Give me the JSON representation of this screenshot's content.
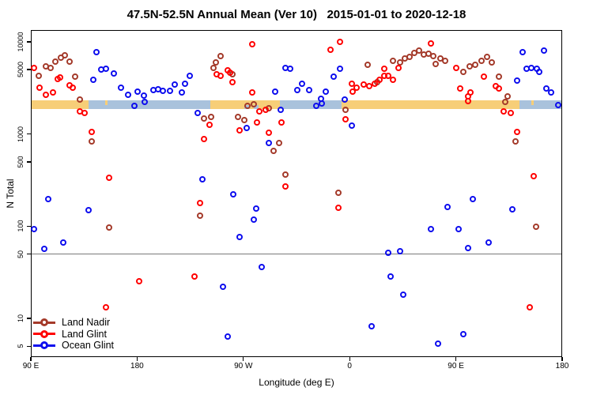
{
  "title": "47.5N-52.5N Annual Mean (Ver 10)   2015-01-01 to 2020-12-18",
  "chart_data": {
    "type": "scatter",
    "title": "47.5N-52.5N Annual Mean (Ver 10)   2015-01-01 to 2020-12-18",
    "xlabel": "Longitude (deg E)",
    "ylabel": "N Total",
    "x_axis": {
      "note": "longitude axis spans 450 deg eastward, t = degrees east of 90E",
      "range_deg": [
        0,
        450
      ],
      "ticks": [
        {
          "t": 0,
          "label": "90 E"
        },
        {
          "t": 90,
          "label": "180"
        },
        {
          "t": 180,
          "label": "90 W"
        },
        {
          "t": 270,
          "label": "0"
        },
        {
          "t": 360,
          "label": "90 E"
        },
        {
          "t": 450,
          "label": "180"
        }
      ]
    },
    "y_axis": {
      "scale": "log10",
      "ylim": [
        3.8,
        13400
      ],
      "ticks": [
        10000,
        5000,
        1000,
        500,
        100,
        50,
        10,
        5
      ]
    },
    "grid": "off",
    "legend_position": "bottom-left-inside",
    "reference_line_n": 50,
    "reference_line_color": "#7a7a7a",
    "surface_band": {
      "description": "land/ocean strip map along latitude band",
      "n_top": 2320,
      "n_bottom": 1870,
      "land_color": "#F7CE78",
      "ocean_color": "#A9C2DC",
      "segments": [
        {
          "from": 0,
          "to": 49,
          "type": "land"
        },
        {
          "from": 49,
          "to": 152,
          "type": "ocean"
        },
        {
          "from": 152,
          "to": 211,
          "type": "land"
        },
        {
          "from": 211,
          "to": 263,
          "type": "ocean"
        },
        {
          "from": 263,
          "to": 414,
          "type": "land"
        },
        {
          "from": 414,
          "to": 450,
          "type": "ocean"
        }
      ],
      "specks": [
        {
          "from": 63,
          "to": 65,
          "type": "land",
          "pos": "top"
        },
        {
          "from": 181,
          "to": 185,
          "type": "ocean",
          "pos": "bottom"
        },
        {
          "from": 189,
          "to": 193,
          "type": "ocean",
          "pos": "bottom"
        },
        {
          "from": 424,
          "to": 426,
          "type": "land",
          "pos": "top"
        }
      ]
    },
    "series": [
      {
        "name": "Land Nadir",
        "color": "#A43A2A",
        "points": [
          [
            7,
            4200
          ],
          [
            13,
            5320
          ],
          [
            17,
            5110
          ],
          [
            21,
            5990
          ],
          [
            26,
            6610
          ],
          [
            29,
            7010
          ],
          [
            33,
            5990
          ],
          [
            38,
            4110
          ],
          [
            42,
            2320
          ],
          [
            52,
            816
          ],
          [
            147,
            1470
          ],
          [
            153,
            1530
          ],
          [
            184,
            1980
          ],
          [
            189,
            2060
          ],
          [
            176,
            1530
          ],
          [
            181,
            1390
          ],
          [
            202,
            1870
          ],
          [
            211,
            785
          ],
          [
            206,
            644
          ],
          [
            216,
            356
          ],
          [
            161,
            6870
          ],
          [
            157,
            5870
          ],
          [
            155,
            5110
          ],
          [
            171,
            4370
          ],
          [
            286,
            5540
          ],
          [
            294,
            3580
          ],
          [
            307,
            6110
          ],
          [
            313,
            5870
          ],
          [
            317,
            6480
          ],
          [
            321,
            6740
          ],
          [
            325,
            7440
          ],
          [
            329,
            7890
          ],
          [
            333,
            7150
          ],
          [
            337,
            7290
          ],
          [
            341,
            6870
          ],
          [
            343,
            5650
          ],
          [
            347,
            6480
          ],
          [
            351,
            6110
          ],
          [
            367,
            4630
          ],
          [
            372,
            5320
          ],
          [
            377,
            5540
          ],
          [
            382,
            6110
          ],
          [
            387,
            6740
          ],
          [
            391,
            5870
          ],
          [
            397,
            4110
          ],
          [
            404,
            2510
          ],
          [
            267,
            1800
          ],
          [
            402,
            2190
          ],
          [
            411,
            816
          ],
          [
            67,
            96
          ],
          [
            144,
            128
          ],
          [
            261,
            227
          ],
          [
            428,
            98
          ]
        ]
      },
      {
        "name": "Land Glint",
        "color": "#FF0000",
        "points": [
          [
            3,
            5110
          ],
          [
            8,
            3120
          ],
          [
            13,
            2610
          ],
          [
            19,
            2770
          ],
          [
            23,
            3880
          ],
          [
            25,
            4030
          ],
          [
            33,
            3310
          ],
          [
            36,
            3120
          ],
          [
            42,
            1730
          ],
          [
            46,
            1690
          ],
          [
            52,
            1050
          ],
          [
            67,
            335
          ],
          [
            152,
            1250
          ],
          [
            147,
            870
          ],
          [
            194,
            1730
          ],
          [
            199,
            1800
          ],
          [
            192,
            1330
          ],
          [
            177,
            1090
          ],
          [
            213,
            1330
          ],
          [
            202,
            1030
          ],
          [
            216,
            265
          ],
          [
            158,
            4370
          ],
          [
            161,
            4200
          ],
          [
            167,
            4820
          ],
          [
            169,
            4540
          ],
          [
            171,
            3580
          ],
          [
            188,
            2770
          ],
          [
            188,
            9240
          ],
          [
            272,
            3450
          ],
          [
            273,
            2830
          ],
          [
            276,
            3120
          ],
          [
            282,
            3380
          ],
          [
            287,
            3250
          ],
          [
            292,
            3450
          ],
          [
            296,
            3800
          ],
          [
            300,
            4200
          ],
          [
            262,
            9800
          ],
          [
            254,
            8050
          ],
          [
            300,
            5010
          ],
          [
            303,
            4200
          ],
          [
            307,
            3800
          ],
          [
            312,
            5110
          ],
          [
            339,
            9430
          ],
          [
            361,
            5110
          ],
          [
            364,
            3060
          ],
          [
            371,
            2510
          ],
          [
            373,
            2770
          ],
          [
            384,
            4110
          ],
          [
            394,
            3250
          ],
          [
            397,
            3060
          ],
          [
            267,
            1420
          ],
          [
            371,
            2230
          ],
          [
            401,
            1730
          ],
          [
            407,
            1690
          ],
          [
            412,
            1050
          ],
          [
            426,
            342
          ],
          [
            144,
            176
          ],
          [
            92,
            25
          ],
          [
            139,
            28
          ],
          [
            64,
            13
          ],
          [
            261,
            157
          ],
          [
            423,
            13
          ]
        ]
      },
      {
        "name": "Ocean Glint",
        "color": "#0D0DEE",
        "points": [
          [
            56,
            7600
          ],
          [
            53,
            3800
          ],
          [
            60,
            4910
          ],
          [
            64,
            5010
          ],
          [
            71,
            4450
          ],
          [
            77,
            3120
          ],
          [
            83,
            2610
          ],
          [
            91,
            2830
          ],
          [
            96,
            2560
          ],
          [
            104,
            2940
          ],
          [
            108,
            3000
          ],
          [
            112,
            2880
          ],
          [
            118,
            2880
          ],
          [
            122,
            3380
          ],
          [
            128,
            2770
          ],
          [
            131,
            3450
          ],
          [
            135,
            4200
          ],
          [
            88,
            1980
          ],
          [
            97,
            2190
          ],
          [
            142,
            1690
          ],
          [
            146,
            316
          ],
          [
            183,
            1160
          ],
          [
            202,
            785
          ],
          [
            212,
            1800
          ],
          [
            207,
            2830
          ],
          [
            216,
            5110
          ],
          [
            220,
            5010
          ],
          [
            226,
            2940
          ],
          [
            230,
            3450
          ],
          [
            236,
            2940
          ],
          [
            246,
            2410
          ],
          [
            250,
            2830
          ],
          [
            257,
            4110
          ],
          [
            262,
            5010
          ],
          [
            417,
            7600
          ],
          [
            420,
            5010
          ],
          [
            424,
            5110
          ],
          [
            429,
            5010
          ],
          [
            431,
            4630
          ],
          [
            412,
            3730
          ],
          [
            437,
            3060
          ],
          [
            441,
            2770
          ],
          [
            435,
            7890
          ],
          [
            242,
            1980
          ],
          [
            247,
            2140
          ],
          [
            266,
            2320
          ],
          [
            272,
            1210
          ],
          [
            447,
            2020
          ],
          [
            15,
            194
          ],
          [
            49,
            147
          ],
          [
            3,
            92
          ],
          [
            12,
            56
          ],
          [
            28,
            66
          ],
          [
            172,
            218
          ],
          [
            191,
            155
          ],
          [
            189,
            116
          ],
          [
            177,
            75
          ],
          [
            196,
            36
          ],
          [
            163,
            22
          ],
          [
            167,
            6.3
          ],
          [
            375,
            194
          ],
          [
            353,
            160
          ],
          [
            408,
            150
          ],
          [
            339,
            92
          ],
          [
            363,
            92
          ],
          [
            388,
            66
          ],
          [
            371,
            57
          ],
          [
            303,
            51
          ],
          [
            313,
            53
          ],
          [
            305,
            28
          ],
          [
            316,
            18
          ],
          [
            289,
            8.1
          ],
          [
            367,
            6.7
          ],
          [
            345,
            5.3
          ]
        ]
      }
    ]
  },
  "legend": {
    "items": [
      {
        "label": "Land Nadir",
        "color": "#A43A2A"
      },
      {
        "label": "Land Glint",
        "color": "#FF0000"
      },
      {
        "label": "Ocean Glint",
        "color": "#0D0DEE"
      }
    ]
  }
}
